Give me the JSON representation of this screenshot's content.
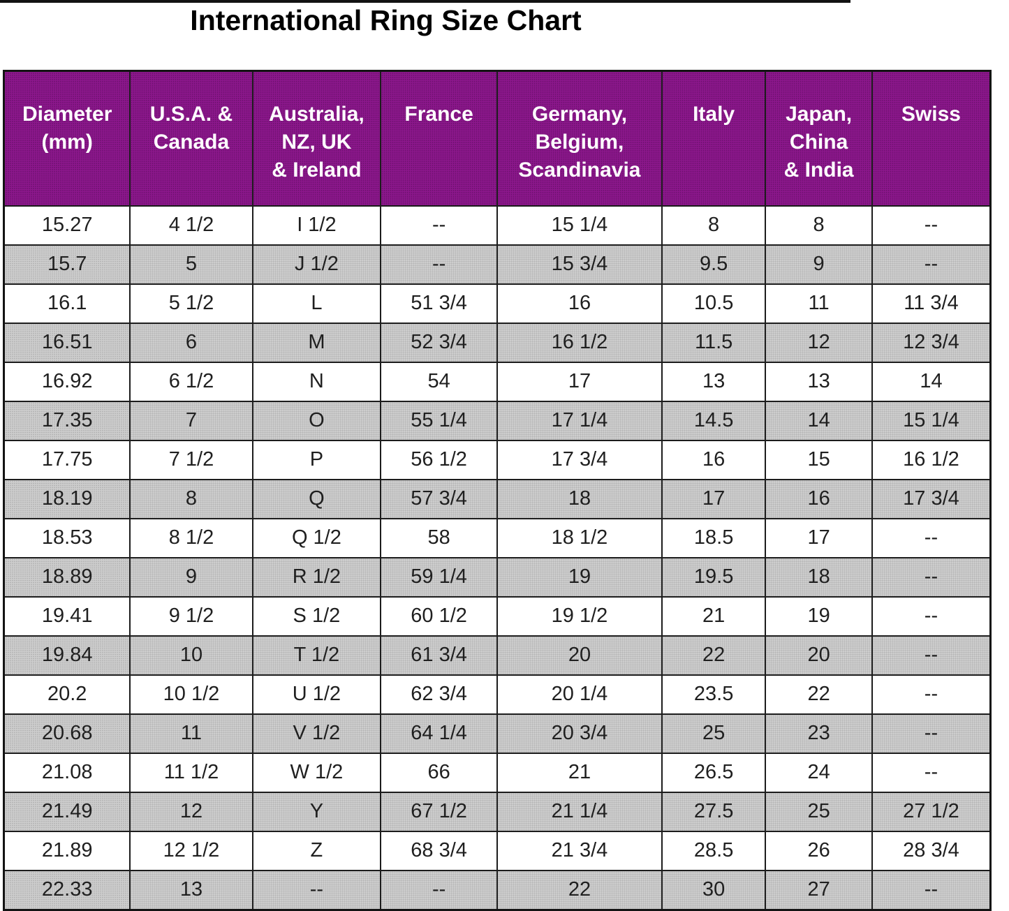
{
  "title": "International Ring Size Chart",
  "colors": {
    "header_bg": "#8d188d",
    "header_text": "#ffffff",
    "stripe_row_bg": "#cecece",
    "plain_row_bg": "#ffffff",
    "border": "#1c1c1c",
    "title_text": "#000000"
  },
  "chart_data": {
    "type": "table",
    "title": "International Ring Size Chart",
    "columns": [
      "Diameter (mm)",
      "U.S.A. & Canada",
      "Australia, NZ, UK & Ireland",
      "France",
      "Germany, Belgium, Scandinavia",
      "Italy",
      "Japan, China & India",
      "Swiss"
    ],
    "header_lines": [
      "Diameter\n(mm)",
      "U.S.A. &\nCanada",
      "Australia,\nNZ, UK\n& Ireland",
      "France",
      "Germany,\nBelgium,\nScandinavia",
      "Italy",
      "Japan,\nChina\n& India",
      "Swiss"
    ],
    "empty_marker": "--",
    "row_striping": "alternate-gray-even-rows",
    "rows": [
      [
        "15.27",
        "4 1/2",
        "I 1/2",
        "--",
        "15 1/4",
        "8",
        "8",
        "--"
      ],
      [
        "15.7",
        "5",
        "J 1/2",
        "--",
        "15 3/4",
        "9.5",
        "9",
        "--"
      ],
      [
        "16.1",
        "5 1/2",
        "L",
        "51 3/4",
        "16",
        "10.5",
        "11",
        "11 3/4"
      ],
      [
        "16.51",
        "6",
        "M",
        "52 3/4",
        "16 1/2",
        "11.5",
        "12",
        "12 3/4"
      ],
      [
        "16.92",
        "6 1/2",
        "N",
        "54",
        "17",
        "13",
        "13",
        "14"
      ],
      [
        "17.35",
        "7",
        "O",
        "55 1/4",
        "17 1/4",
        "14.5",
        "14",
        "15 1/4"
      ],
      [
        "17.75",
        "7 1/2",
        "P",
        "56 1/2",
        "17 3/4",
        "16",
        "15",
        "16 1/2"
      ],
      [
        "18.19",
        "8",
        "Q",
        "57 3/4",
        "18",
        "17",
        "16",
        "17 3/4"
      ],
      [
        "18.53",
        "8 1/2",
        "Q 1/2",
        "58",
        "18 1/2",
        "18.5",
        "17",
        "--"
      ],
      [
        "18.89",
        "9",
        "R 1/2",
        "59 1/4",
        "19",
        "19.5",
        "18",
        "--"
      ],
      [
        "19.41",
        "9 1/2",
        "S 1/2",
        "60 1/2",
        "19 1/2",
        "21",
        "19",
        "--"
      ],
      [
        "19.84",
        "10",
        "T 1/2",
        "61 3/4",
        "20",
        "22",
        "20",
        "--"
      ],
      [
        "20.2",
        "10 1/2",
        "U 1/2",
        "62 3/4",
        "20 1/4",
        "23.5",
        "22",
        "--"
      ],
      [
        "20.68",
        "11",
        "V 1/2",
        "64 1/4",
        "20 3/4",
        "25",
        "23",
        "--"
      ],
      [
        "21.08",
        "11 1/2",
        "W 1/2",
        "66",
        "21",
        "26.5",
        "24",
        "--"
      ],
      [
        "21.49",
        "12",
        "Y",
        "67 1/2",
        "21 1/4",
        "27.5",
        "25",
        "27 1/2"
      ],
      [
        "21.89",
        "12 1/2",
        "Z",
        "68 3/4",
        "21 3/4",
        "28.5",
        "26",
        "28 3/4"
      ],
      [
        "22.33",
        "13",
        "--",
        "--",
        "22",
        "30",
        "27",
        "--"
      ]
    ]
  }
}
